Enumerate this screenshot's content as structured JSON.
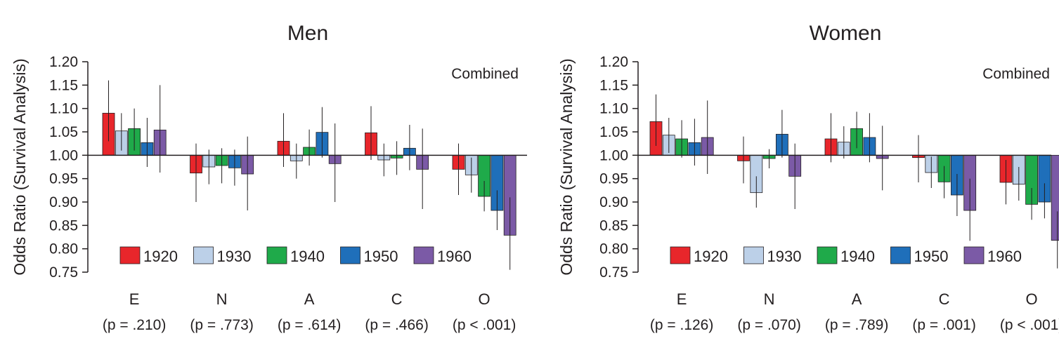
{
  "chart_data": [
    {
      "type": "bar",
      "title": "Men",
      "ylabel": "Odds Ratio (Survival Analysis)",
      "annotation": "Combined",
      "ylim": [
        0.75,
        1.2
      ],
      "baseline": 1.0,
      "yticks": [
        "1.20",
        "1.15",
        "1.10",
        "1.05",
        "1.00",
        "0.95",
        "0.90",
        "0.85",
        "0.80",
        "0.75"
      ],
      "categories": [
        "E",
        "N",
        "A",
        "C",
        "O"
      ],
      "p_labels": [
        "(p = .210)",
        "(p = .773)",
        "(p = .614)",
        "(p = .466)",
        "(p < .001)"
      ],
      "series": [
        {
          "name": "1920",
          "color": "#e8262b",
          "values": [
            1.09,
            0.962,
            1.03,
            1.048,
            0.97
          ],
          "err_low": [
            1.03,
            0.9,
            0.975,
            0.99,
            0.915
          ],
          "err_high": [
            1.16,
            1.025,
            1.09,
            1.105,
            1.025
          ]
        },
        {
          "name": "1930",
          "color": "#bcd0e8",
          "values": [
            1.052,
            0.975,
            0.988,
            0.99,
            0.958
          ],
          "err_low": [
            1.01,
            0.938,
            0.95,
            0.955,
            0.92
          ],
          "err_high": [
            1.09,
            1.012,
            1.025,
            1.025,
            0.995
          ]
        },
        {
          "name": "1940",
          "color": "#1faa4a",
          "values": [
            1.057,
            0.978,
            1.017,
            0.994,
            0.912
          ],
          "err_low": [
            1.01,
            0.94,
            0.978,
            0.958,
            0.88
          ],
          "err_high": [
            1.1,
            1.015,
            1.055,
            1.03,
            0.945
          ]
        },
        {
          "name": "1950",
          "color": "#1f6fba",
          "values": [
            1.027,
            0.973,
            1.049,
            1.015,
            0.882
          ],
          "err_low": [
            0.975,
            0.935,
            0.995,
            0.968,
            0.84
          ],
          "err_high": [
            1.08,
            1.012,
            1.103,
            1.065,
            0.925
          ]
        },
        {
          "name": "1960",
          "color": "#7b5aa6",
          "values": [
            1.054,
            0.96,
            0.982,
            0.97,
            0.829
          ],
          "err_low": [
            0.963,
            0.882,
            0.9,
            0.885,
            0.755
          ],
          "err_high": [
            1.15,
            1.04,
            1.068,
            1.057,
            0.91
          ]
        }
      ]
    },
    {
      "type": "bar",
      "title": "Women",
      "ylabel": "Odds Ratio (Survival Analysis)",
      "annotation": "Combined",
      "ylim": [
        0.75,
        1.2
      ],
      "baseline": 1.0,
      "yticks": [
        "1.20",
        "1.15",
        "1.10",
        "1.05",
        "1.00",
        "0.95",
        "0.90",
        "0.85",
        "0.80",
        "0.75"
      ],
      "categories": [
        "E",
        "N",
        "A",
        "C",
        "O"
      ],
      "p_labels": [
        "(p = .126)",
        "(p = .070)",
        "(p = .789)",
        "(p = .001)",
        "(p < .001)"
      ],
      "series": [
        {
          "name": "1920",
          "color": "#e8262b",
          "values": [
            1.072,
            0.988,
            1.035,
            0.995,
            0.942
          ],
          "err_low": [
            1.02,
            0.94,
            0.985,
            0.942,
            0.895
          ],
          "err_high": [
            1.13,
            1.04,
            1.09,
            1.043,
            0.99
          ]
        },
        {
          "name": "1930",
          "color": "#bcd0e8",
          "values": [
            1.043,
            0.92,
            1.028,
            0.963,
            0.938
          ],
          "err_low": [
            1.005,
            0.888,
            0.993,
            0.93,
            0.903
          ],
          "err_high": [
            1.08,
            0.955,
            1.062,
            0.997,
            0.975
          ]
        },
        {
          "name": "1940",
          "color": "#1faa4a",
          "values": [
            1.035,
            0.993,
            1.057,
            0.943,
            0.895
          ],
          "err_low": [
            0.995,
            0.972,
            1.015,
            0.908,
            0.862
          ],
          "err_high": [
            1.075,
            1.013,
            1.093,
            0.977,
            0.93
          ]
        },
        {
          "name": "1950",
          "color": "#1f6fba",
          "values": [
            1.027,
            1.045,
            1.038,
            0.915,
            0.9
          ],
          "err_low": [
            0.978,
            0.995,
            0.985,
            0.87,
            0.865
          ],
          "err_high": [
            1.078,
            1.097,
            1.09,
            0.96,
            0.94
          ]
        },
        {
          "name": "1960",
          "color": "#7b5aa6",
          "values": [
            1.038,
            0.955,
            0.993,
            0.882,
            0.818
          ],
          "err_low": [
            0.96,
            0.885,
            0.925,
            0.817,
            0.758
          ],
          "err_high": [
            1.117,
            1.025,
            1.063,
            0.95,
            0.88
          ]
        }
      ]
    }
  ]
}
